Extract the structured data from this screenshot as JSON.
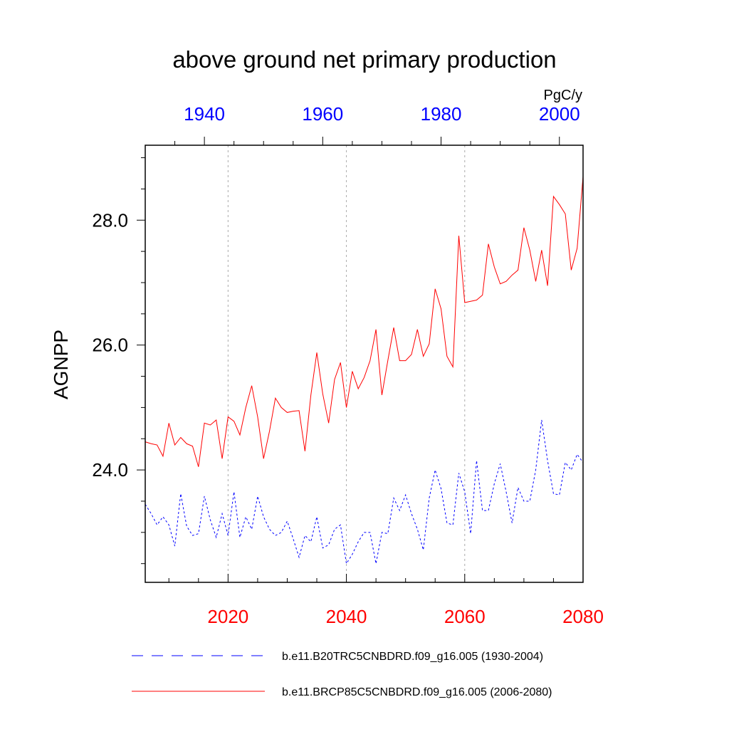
{
  "chart_data": {
    "type": "line",
    "title": "above ground net primary production",
    "ylabel": "AGNPP",
    "units": "PgC/y",
    "ylim": [
      22.2,
      29.2
    ],
    "y_ticks": [
      "24.0",
      "26.0",
      "28.0"
    ],
    "bottom_axis": {
      "color": "#ff0000",
      "range": [
        2006,
        2080
      ],
      "ticks": [
        "2020",
        "2040",
        "2060",
        "2080"
      ]
    },
    "top_axis": {
      "color": "#0000ff",
      "range": [
        1930,
        2004
      ],
      "ticks": [
        "1940",
        "1960",
        "1980",
        "2000"
      ]
    },
    "grid_x": [
      2020,
      2040,
      2060
    ],
    "series": [
      {
        "name": "b.e11.B20TRC5CNBDRD.f09_g16.005 (1930-2004)",
        "axis": "top",
        "color": "#0000ff",
        "dash": "dashed",
        "x_start": 1930,
        "values": [
          23.45,
          23.3,
          23.12,
          23.25,
          23.12,
          22.78,
          23.62,
          23.1,
          22.95,
          22.98,
          23.58,
          23.2,
          22.92,
          23.3,
          22.95,
          23.65,
          22.92,
          23.25,
          23.05,
          23.58,
          23.25,
          23.05,
          22.95,
          23.0,
          23.18,
          22.9,
          22.6,
          22.95,
          22.85,
          23.25,
          22.75,
          22.8,
          23.05,
          23.12,
          22.5,
          22.65,
          22.85,
          23.0,
          23.0,
          22.5,
          23.0,
          22.98,
          23.55,
          23.35,
          23.6,
          23.3,
          23.05,
          22.72,
          23.55,
          24.0,
          23.7,
          23.15,
          23.12,
          23.95,
          23.65,
          22.98,
          24.15,
          23.35,
          23.35,
          23.78,
          24.1,
          23.65,
          23.15,
          23.72,
          23.5,
          23.5,
          24.0,
          24.8,
          24.15,
          23.62,
          23.6,
          24.12,
          24.0,
          24.25,
          24.12
        ]
      },
      {
        "name": "b.e11.BRCP85C5CNBDRD.f09_g16.005 (2006-2080)",
        "axis": "bottom",
        "color": "#ff0000",
        "dash": "solid",
        "x_start": 2006,
        "values": [
          24.45,
          24.42,
          24.4,
          24.22,
          24.75,
          24.4,
          24.52,
          24.42,
          24.38,
          24.05,
          24.75,
          24.72,
          24.8,
          24.18,
          24.85,
          24.78,
          24.56,
          25.0,
          25.35,
          24.85,
          24.18,
          24.62,
          25.15,
          25.0,
          24.92,
          24.94,
          24.95,
          24.3,
          25.2,
          25.88,
          25.22,
          24.75,
          25.45,
          25.72,
          25.0,
          25.58,
          25.3,
          25.48,
          25.75,
          26.25,
          25.2,
          25.75,
          26.28,
          25.75,
          25.75,
          25.85,
          26.25,
          25.82,
          26.02,
          26.9,
          26.58,
          25.82,
          25.65,
          27.75,
          26.68,
          26.7,
          26.72,
          26.8,
          27.62,
          27.25,
          26.98,
          27.02,
          27.12,
          27.2,
          27.88,
          27.52,
          27.02,
          27.52,
          26.95,
          28.38,
          28.25,
          28.1,
          27.2,
          27.55,
          28.7
        ]
      }
    ],
    "legend_position": "bottom"
  }
}
